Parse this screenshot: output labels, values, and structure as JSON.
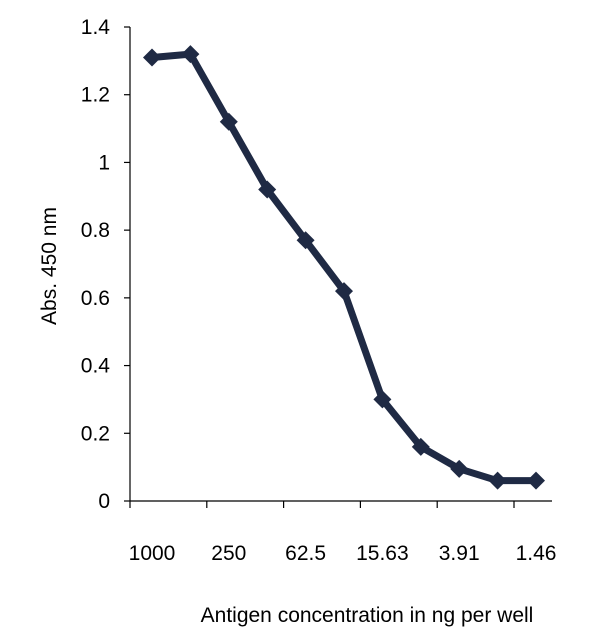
{
  "chart_data": {
    "type": "line",
    "title": "",
    "xlabel": "Antigen concentration in ng per well",
    "ylabel": "Abs.  450 nm",
    "ylim": [
      0,
      1.4
    ],
    "y_ticks": [
      "0",
      "0.2",
      "0.4",
      "0.6",
      "0.8",
      "1",
      "1.2",
      "1.4"
    ],
    "x_tick_labels": [
      "1000",
      "250",
      "62.5",
      "15.63",
      "3.91",
      "1.46"
    ],
    "x_tick_label_point_index": [
      0,
      2,
      4,
      6,
      8,
      10
    ],
    "grid": false,
    "legend": "none",
    "line_color": "#1f2a44",
    "series": [
      {
        "values": [
          1.31,
          1.32,
          1.12,
          0.92,
          0.77,
          0.62,
          0.3,
          0.16,
          0.095,
          0.06,
          0.06
        ]
      }
    ]
  }
}
